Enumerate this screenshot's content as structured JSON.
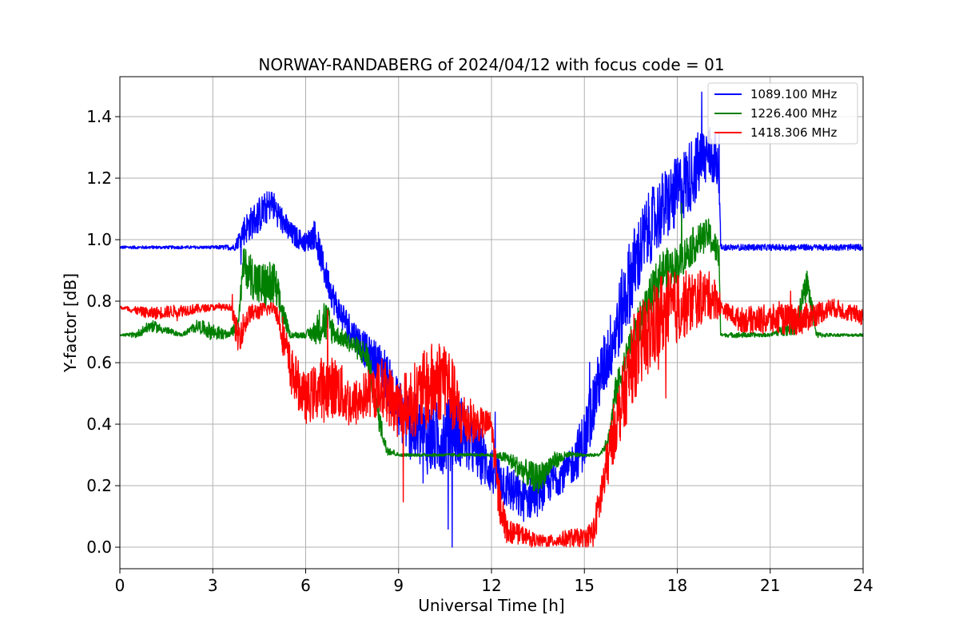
{
  "chart_data": {
    "type": "line",
    "title": "NORWAY-RANDABERG of 2024/04/12 with focus code = 01",
    "xlabel": "Universal Time [h]",
    "ylabel": "Y-factor [dB]",
    "xlim": [
      0,
      24
    ],
    "ylim": [
      -0.07,
      1.53
    ],
    "xticks": [
      0,
      3,
      6,
      9,
      12,
      15,
      18,
      21,
      24
    ],
    "yticks": [
      0.0,
      0.2,
      0.4,
      0.6,
      0.8,
      1.0,
      1.2,
      1.4
    ],
    "ytick_labels": [
      "0.0",
      "0.2",
      "0.4",
      "0.6",
      "0.8",
      "1.0",
      "1.2",
      "1.4"
    ],
    "grid": true,
    "legend_position": "top-right",
    "series": [
      {
        "name": "1089.100 MHz",
        "color": "#0000ff",
        "x": [
          0,
          1,
          2,
          3,
          3.7,
          4.0,
          4.5,
          4.9,
          5.5,
          6.0,
          6.3,
          6.6,
          7.0,
          7.5,
          8.0,
          8.5,
          9.0,
          9.5,
          10.0,
          10.5,
          11.0,
          11.5,
          12.0,
          12.5,
          13.0,
          13.5,
          14.0,
          14.5,
          15.0,
          15.5,
          16.0,
          16.5,
          17.0,
          17.5,
          18.0,
          18.5,
          19.0,
          19.35,
          19.4,
          20,
          21,
          22,
          23,
          24
        ],
        "y": [
          0.975,
          0.975,
          0.975,
          0.975,
          0.975,
          1.03,
          1.08,
          1.12,
          1.02,
          0.99,
          1.02,
          0.9,
          0.78,
          0.7,
          0.63,
          0.58,
          0.45,
          0.38,
          0.35,
          0.36,
          0.38,
          0.32,
          0.25,
          0.2,
          0.15,
          0.17,
          0.22,
          0.25,
          0.35,
          0.55,
          0.7,
          0.88,
          1.02,
          1.1,
          1.15,
          1.22,
          1.28,
          1.25,
          0.975,
          0.975,
          0.975,
          0.975,
          0.975,
          0.975
        ],
        "noise": [
          0.005,
          0.005,
          0.005,
          0.005,
          0.01,
          0.05,
          0.06,
          0.05,
          0.04,
          0.03,
          0.05,
          0.05,
          0.05,
          0.05,
          0.06,
          0.08,
          0.1,
          0.12,
          0.12,
          0.12,
          0.12,
          0.1,
          0.08,
          0.08,
          0.07,
          0.07,
          0.06,
          0.06,
          0.1,
          0.1,
          0.12,
          0.14,
          0.12,
          0.12,
          0.12,
          0.12,
          0.1,
          0.1,
          0.01,
          0.01,
          0.01,
          0.01,
          0.01,
          0.01
        ]
      },
      {
        "name": "1226.400 MHz",
        "color": "#008000",
        "x": [
          0,
          0.5,
          1,
          2,
          2.5,
          3.0,
          3.5,
          3.8,
          4.0,
          4.5,
          5.0,
          5.2,
          5.5,
          6.0,
          6.3,
          6.6,
          7.0,
          7.5,
          8.0,
          8.3,
          8.6,
          9.0,
          10,
          11,
          12,
          12.5,
          13,
          13.5,
          14,
          14.5,
          15,
          15.5,
          15.8,
          16.0,
          16.5,
          17.0,
          17.5,
          18.0,
          18.5,
          19.0,
          19.35,
          19.4,
          20,
          21,
          21.8,
          22.2,
          22.5,
          23,
          24
        ],
        "y": [
          0.69,
          0.69,
          0.72,
          0.69,
          0.72,
          0.7,
          0.69,
          0.72,
          0.92,
          0.85,
          0.85,
          0.78,
          0.69,
          0.69,
          0.7,
          0.74,
          0.69,
          0.66,
          0.62,
          0.45,
          0.32,
          0.3,
          0.3,
          0.3,
          0.3,
          0.29,
          0.25,
          0.22,
          0.28,
          0.3,
          0.3,
          0.3,
          0.36,
          0.5,
          0.66,
          0.78,
          0.9,
          0.92,
          0.98,
          1.02,
          0.95,
          0.69,
          0.69,
          0.69,
          0.72,
          0.86,
          0.69,
          0.69,
          0.69
        ],
        "noise": [
          0.002,
          0.01,
          0.02,
          0.005,
          0.02,
          0.03,
          0.01,
          0.02,
          0.06,
          0.08,
          0.08,
          0.05,
          0.01,
          0.01,
          0.04,
          0.08,
          0.03,
          0.03,
          0.05,
          0.05,
          0.02,
          0.005,
          0.005,
          0.005,
          0.005,
          0.02,
          0.04,
          0.05,
          0.03,
          0.01,
          0.005,
          0.005,
          0.03,
          0.05,
          0.06,
          0.07,
          0.07,
          0.06,
          0.06,
          0.05,
          0.05,
          0.005,
          0.01,
          0.005,
          0.03,
          0.05,
          0.01,
          0.005,
          0.005
        ]
      },
      {
        "name": "1418.306 MHz",
        "color": "#ff0000",
        "x": [
          0,
          1,
          2,
          3,
          3.6,
          3.8,
          4.2,
          5.0,
          5.2,
          5.5,
          6.0,
          6.5,
          7.0,
          7.5,
          8.0,
          8.5,
          9.0,
          9.5,
          10.0,
          10.5,
          11.0,
          11.5,
          12.0,
          12.2,
          12.5,
          13.0,
          13.5,
          14.0,
          14.5,
          15.0,
          15.3,
          15.6,
          16.0,
          16.3,
          16.6,
          17.0,
          17.5,
          18.0,
          18.5,
          19.0,
          19.35,
          19.4,
          20,
          21,
          22,
          23,
          24
        ],
        "y": [
          0.78,
          0.76,
          0.77,
          0.78,
          0.78,
          0.68,
          0.76,
          0.78,
          0.72,
          0.58,
          0.48,
          0.52,
          0.52,
          0.46,
          0.5,
          0.52,
          0.45,
          0.48,
          0.52,
          0.56,
          0.42,
          0.4,
          0.4,
          0.18,
          0.05,
          0.04,
          0.02,
          0.02,
          0.03,
          0.03,
          0.05,
          0.2,
          0.4,
          0.5,
          0.62,
          0.68,
          0.76,
          0.78,
          0.8,
          0.82,
          0.8,
          0.78,
          0.74,
          0.74,
          0.74,
          0.78,
          0.75
        ],
        "noise": [
          0.005,
          0.02,
          0.02,
          0.01,
          0.01,
          0.06,
          0.03,
          0.02,
          0.06,
          0.08,
          0.08,
          0.1,
          0.1,
          0.08,
          0.08,
          0.1,
          0.1,
          0.12,
          0.14,
          0.14,
          0.1,
          0.06,
          0.04,
          0.08,
          0.04,
          0.03,
          0.02,
          0.02,
          0.03,
          0.03,
          0.05,
          0.08,
          0.1,
          0.12,
          0.14,
          0.14,
          0.14,
          0.12,
          0.1,
          0.08,
          0.06,
          0.02,
          0.04,
          0.05,
          0.05,
          0.03,
          0.03
        ]
      }
    ]
  }
}
